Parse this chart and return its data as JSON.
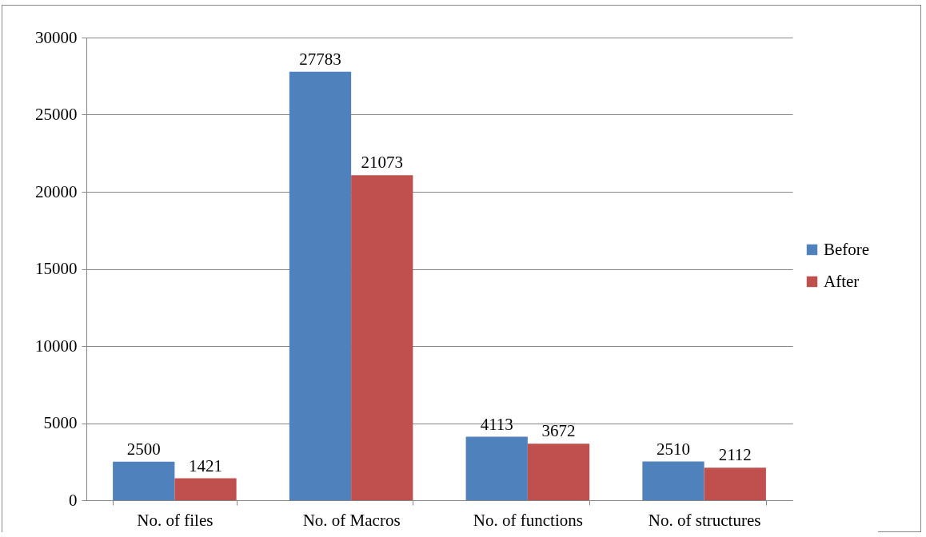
{
  "chart_data": {
    "type": "bar",
    "categories": [
      "No. of files",
      "No. of Macros",
      "No. of functions",
      "No. of structures"
    ],
    "series": [
      {
        "name": "Before",
        "color": "#4f81bd",
        "values": [
          2500,
          27783,
          4113,
          2510
        ]
      },
      {
        "name": "After",
        "color": "#c0504d",
        "values": [
          1421,
          21073,
          3672,
          2112
        ]
      }
    ],
    "ylim": [
      0,
      30000
    ],
    "yticks": [
      0,
      5000,
      10000,
      15000,
      20000,
      25000,
      30000
    ],
    "grid": "y",
    "legend": "right",
    "data_labels": true
  }
}
